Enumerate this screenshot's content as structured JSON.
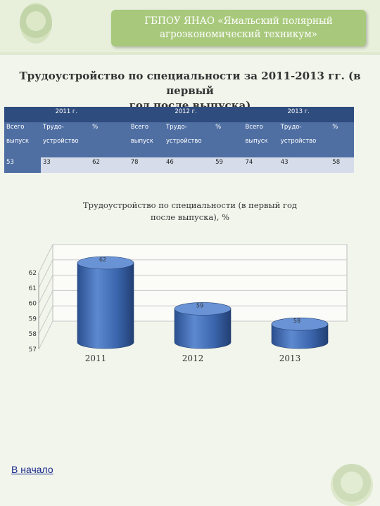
{
  "header": {
    "line1": "ГБПОУ ЯНАО «Ямальский полярный",
    "line2": "агроэкономический техникум»"
  },
  "page_title": {
    "line1": "Трудоустройство по специальности за 2011-2013 гг. (в первый",
    "line2": "год после выпуска)"
  },
  "table": {
    "years": [
      "2011 г.",
      "2012 г.",
      "2013 г."
    ],
    "head": {
      "total_1": "Всего",
      "total_2": "выпуск",
      "emp_1": "Трудо-",
      "emp_2": "устройство",
      "pct": "%"
    },
    "values": [
      "53",
      "33",
      "62",
      "78",
      "46",
      "59",
      "74",
      "43",
      "58"
    ]
  },
  "chart_data": {
    "type": "bar",
    "title": "Трудоустройство по специальности (в первый год после выпуска), %",
    "title_line1": "Трудоустройство по специальности (в первый год",
    "title_line2": "после выпуска), %",
    "categories": [
      "2011",
      "2012",
      "2013"
    ],
    "values": [
      62,
      59,
      58
    ],
    "y_ticks": [
      "62",
      "61",
      "60",
      "59",
      "58",
      "57"
    ],
    "ylim": [
      57,
      62
    ],
    "bar_color": "#4472c4",
    "grid": true,
    "style": "3d-cylinder"
  },
  "footer": {
    "back_link": "В начало"
  }
}
